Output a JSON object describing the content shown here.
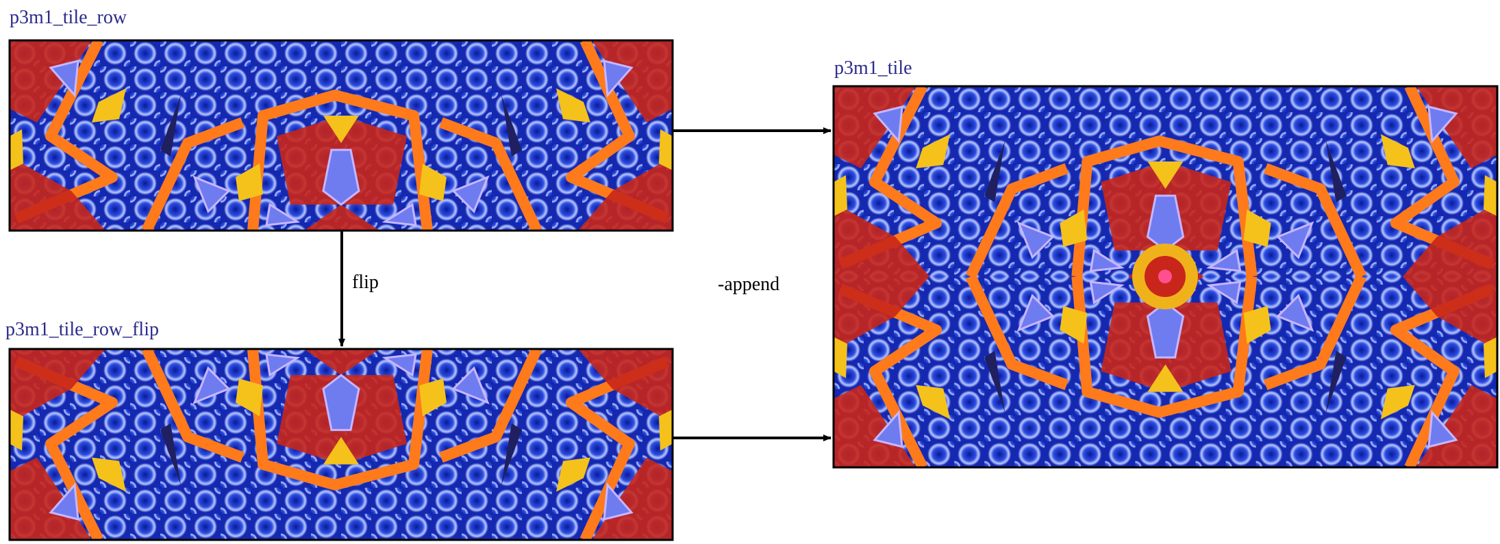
{
  "nodes": [
    {
      "label": "p3m1_tile_row"
    },
    {
      "label": "p3m1_tile_row_flip"
    },
    {
      "label": "p3m1_tile"
    }
  ],
  "edges": [
    {
      "label": "flip"
    },
    {
      "label": "-append"
    }
  ]
}
